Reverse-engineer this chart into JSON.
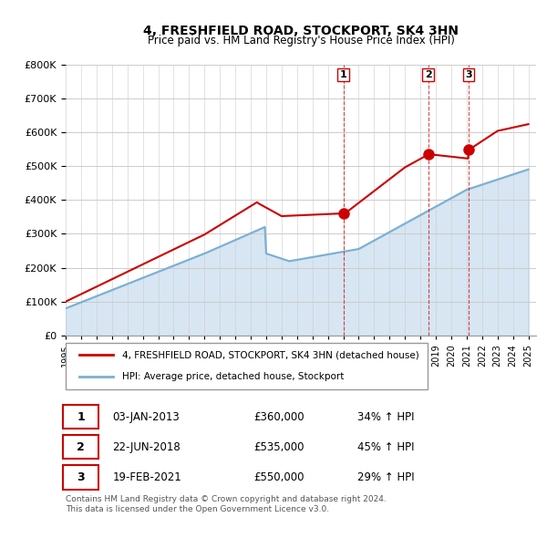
{
  "title": "4, FRESHFIELD ROAD, STOCKPORT, SK4 3HN",
  "subtitle": "Price paid vs. HM Land Registry's House Price Index (HPI)",
  "ylabel": "",
  "ylim": [
    0,
    800000
  ],
  "yticks": [
    0,
    100000,
    200000,
    300000,
    400000,
    500000,
    600000,
    700000,
    800000
  ],
  "ytick_labels": [
    "£0",
    "£100K",
    "£200K",
    "£300K",
    "£400K",
    "£500K",
    "£600K",
    "£700K",
    "£800K"
  ],
  "hpi_color": "#7bafd4",
  "price_color": "#cc0000",
  "sale_marker_color": "#cc0000",
  "vline_color": "#cc0000",
  "grid_color": "#cccccc",
  "background_color": "#ffffff",
  "legend_label_price": "4, FRESHFIELD ROAD, STOCKPORT, SK4 3HN (detached house)",
  "legend_label_hpi": "HPI: Average price, detached house, Stockport",
  "sales": [
    {
      "label": "1",
      "date_num": 2013.0,
      "price": 360000,
      "pct": "34%",
      "date_str": "03-JAN-2013"
    },
    {
      "label": "2",
      "date_num": 2018.5,
      "price": 535000,
      "pct": "45%",
      "date_str": "22-JUN-2018"
    },
    {
      "label": "3",
      "date_num": 2021.12,
      "price": 550000,
      "pct": "29%",
      "date_str": "19-FEB-2021"
    }
  ],
  "footer": "Contains HM Land Registry data © Crown copyright and database right 2024.\nThis data is licensed under the Open Government Licence v3.0.",
  "xtick_years": [
    1995,
    1996,
    1997,
    1998,
    1999,
    2000,
    2001,
    2002,
    2003,
    2004,
    2005,
    2006,
    2007,
    2008,
    2009,
    2010,
    2011,
    2012,
    2013,
    2014,
    2015,
    2016,
    2017,
    2018,
    2019,
    2020,
    2021,
    2022,
    2023,
    2024,
    2025
  ]
}
